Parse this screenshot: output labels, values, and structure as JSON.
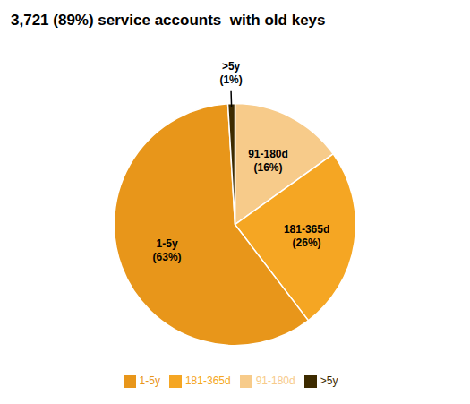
{
  "chart_data": {
    "type": "pie",
    "title": "3,721 (89%) service accounts  with old keys",
    "categories": [
      "91-180d",
      "181-365d",
      "1-5y",
      ">5y"
    ],
    "values": [
      16,
      26,
      63,
      1
    ],
    "value_labels": [
      "(16%)",
      "(26%)",
      "(63%)",
      "(1%)"
    ],
    "colors": [
      "#F7CB8A",
      "#F5A623",
      "#E8961A",
      "#3D2B00"
    ],
    "data_labels": true,
    "legend": "bottom"
  }
}
